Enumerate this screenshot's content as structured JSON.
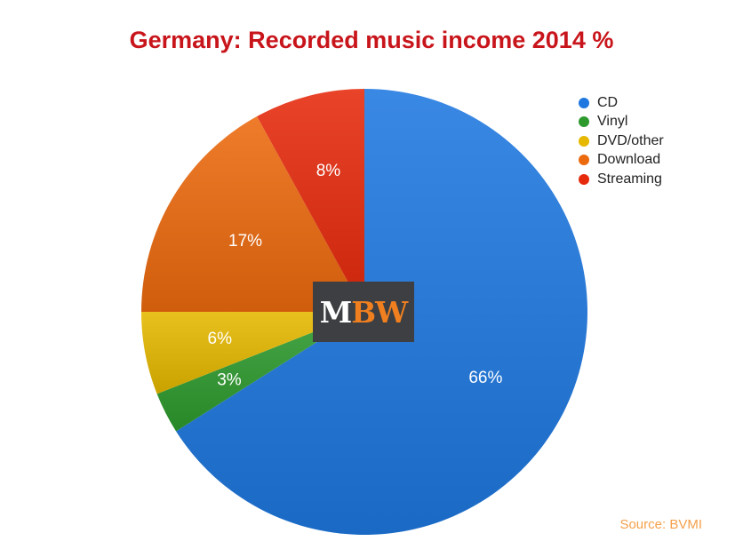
{
  "chart_data": {
    "type": "pie",
    "title": "Germany: Recorded music income 2014 %",
    "series": [
      {
        "name": "CD",
        "value": 66,
        "label": "66%",
        "color": "#1e78e0"
      },
      {
        "name": "Vinyl",
        "value": 3,
        "label": "3%",
        "color": "#2e9a2e"
      },
      {
        "name": "DVD/other",
        "value": 6,
        "label": "6%",
        "color": "#e6b800"
      },
      {
        "name": "Download",
        "value": 17,
        "label": "17%",
        "color": "#ec6a0e"
      },
      {
        "name": "Streaming",
        "value": 8,
        "label": "8%",
        "color": "#e62a0c"
      }
    ],
    "legend_position": "top-right",
    "source": "Source: BVMI"
  },
  "logo": {
    "text_m": "M",
    "text_bw": "BW"
  }
}
